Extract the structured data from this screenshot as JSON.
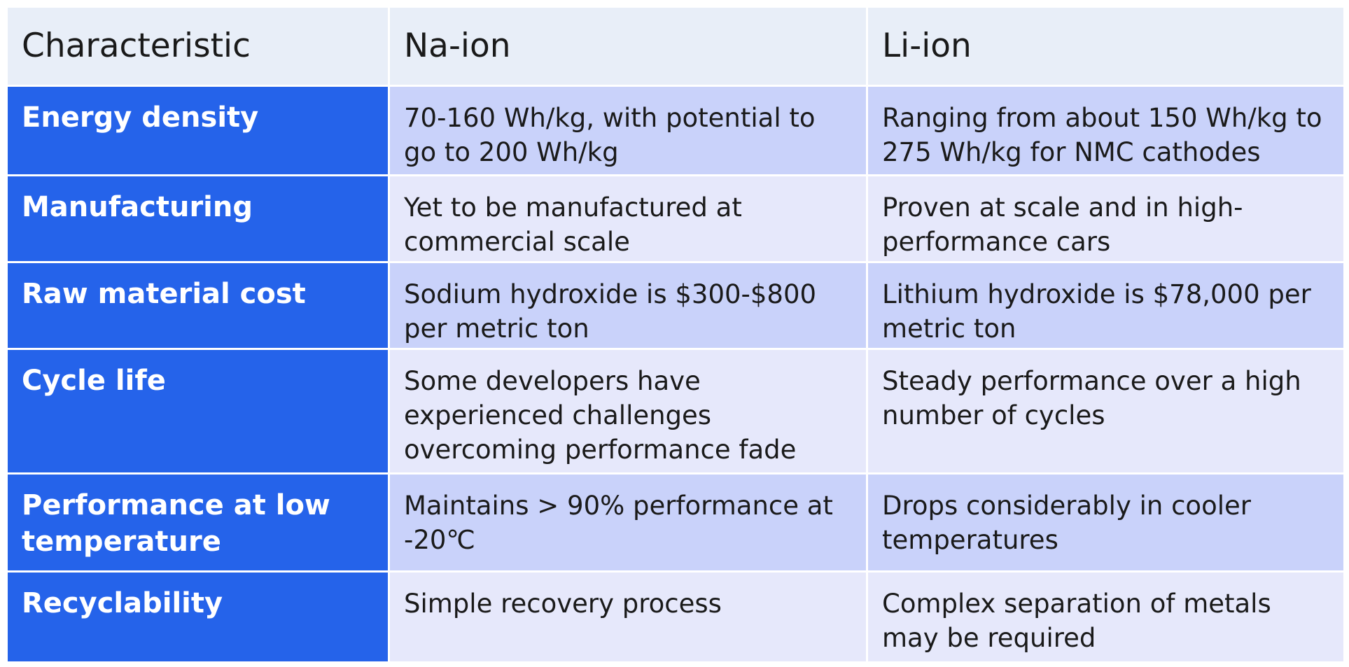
{
  "table": {
    "headers": [
      "Characteristic",
      "Na-ion",
      "Li-ion"
    ],
    "rows": [
      {
        "label": "Energy density",
        "na_ion": "70-160 Wh/kg, with potential to go to 200 Wh/kg",
        "li_ion": "Ranging from about 150 Wh/kg to 275 Wh/kg for NMC cathodes"
      },
      {
        "label": "Manufacturing",
        "na_ion": "Yet to be manufactured at commercial scale",
        "li_ion": "Proven at scale and in high-performance cars"
      },
      {
        "label": "Raw material cost",
        "na_ion": "Sodium hydroxide is $300-$800 per metric ton",
        "li_ion": "Lithium hydroxide is $78,000 per metric ton"
      },
      {
        "label": "Cycle life",
        "na_ion": "Some developers have experienced challenges overcoming performance fade",
        "li_ion": "Steady performance over a high number of cycles"
      },
      {
        "label": "Performance at low temperature",
        "na_ion": "Maintains > 90% performance at -20℃",
        "li_ion": "Drops considerably in cooler temperatures"
      },
      {
        "label": "Recyclability",
        "na_ion": "Simple recovery process",
        "li_ion": "Complex separation of metals may be required"
      }
    ]
  },
  "colors": {
    "header_bg": "#e8eef8",
    "label_bg": "#2563ea",
    "row_odd_bg": "#c9d2fa",
    "row_even_bg": "#e6e8fb"
  }
}
